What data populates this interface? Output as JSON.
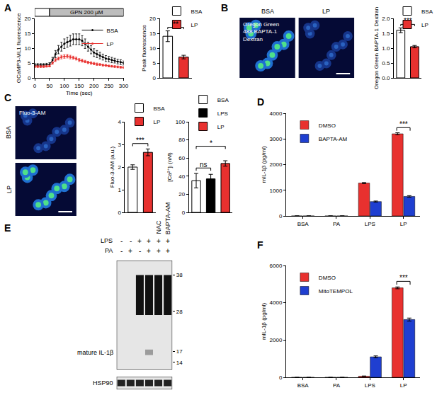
{
  "chart_data": [
    {
      "panel": "A",
      "type": "line",
      "stimulus": {
        "label": "GPN 200 μM",
        "start": 50,
        "end": 300
      },
      "x": [
        0,
        10,
        20,
        30,
        40,
        50,
        60,
        70,
        80,
        90,
        100,
        110,
        120,
        130,
        140,
        150,
        160,
        170,
        180,
        190,
        200,
        210,
        220,
        230,
        240,
        250,
        260,
        270,
        280,
        290,
        300
      ],
      "series": [
        {
          "name": "BSA",
          "color": "#000000",
          "marker": "circle",
          "values": [
            4.3,
            4.3,
            4.3,
            4.3,
            4.4,
            4.5,
            6.0,
            8.0,
            9.5,
            10.5,
            11.5,
            12.0,
            12.5,
            13.0,
            13.0,
            13.0,
            12.5,
            11.5,
            10.5,
            9.5,
            8.5,
            8.0,
            7.5,
            7.0,
            6.5,
            6.3,
            6.0,
            5.8,
            5.5,
            5.3,
            5.0
          ],
          "errors": [
            0.5,
            0.5,
            0.5,
            0.5,
            0.5,
            0.6,
            0.9,
            1.2,
            1.4,
            1.5,
            1.6,
            1.7,
            1.8,
            1.8,
            1.8,
            1.8,
            1.7,
            1.6,
            1.5,
            1.4,
            1.3,
            1.2,
            1.1,
            1.0,
            1.0,
            0.9,
            0.9,
            0.8,
            0.8,
            0.8,
            0.7
          ]
        },
        {
          "name": "LP",
          "color": "#e8312f",
          "marker": "circle",
          "values": [
            3.8,
            3.8,
            3.8,
            3.8,
            3.9,
            4.0,
            5.0,
            6.0,
            6.5,
            7.0,
            7.2,
            7.3,
            7.0,
            6.8,
            6.5,
            6.0,
            5.8,
            5.5,
            5.2,
            5.0,
            4.8,
            4.6,
            4.5,
            4.3,
            4.2,
            4.0,
            3.9,
            3.8,
            3.7,
            3.6,
            3.5
          ],
          "errors": [
            0.3,
            0.3,
            0.3,
            0.3,
            0.3,
            0.3,
            0.4,
            0.5,
            0.5,
            0.6,
            0.6,
            0.6,
            0.6,
            0.5,
            0.5,
            0.5,
            0.5,
            0.4,
            0.4,
            0.4,
            0.4,
            0.4,
            0.3,
            0.3,
            0.3,
            0.3,
            0.3,
            0.3,
            0.3,
            0.3,
            0.3
          ]
        }
      ],
      "xlabel": "Time (sec)",
      "ylabel": "GCaMP3-ML1 fluorescence",
      "xlim": [
        0,
        300
      ],
      "xticks": [
        0,
        50,
        100,
        150,
        200,
        250,
        300
      ],
      "ylim": [
        0,
        20
      ],
      "yticks": [
        0,
        5,
        10,
        15,
        20
      ],
      "legend": "top right"
    },
    {
      "type": "bar",
      "categories": [
        "BSA",
        "LP"
      ],
      "values": [
        14,
        7
      ],
      "errors": [
        1.8,
        0.6
      ],
      "colors": [
        "#ffffff",
        "#e8312f"
      ],
      "ylabel": "Peak fluorescence",
      "ylim": [
        0,
        20
      ],
      "yticks": [
        0,
        5,
        10,
        15,
        20
      ],
      "tick_labels": "y",
      "legend": "top",
      "significance": [
        {
          "from": "BSA",
          "to": "LP",
          "label": "**"
        }
      ]
    },
    {
      "panel": "B",
      "type": "image",
      "labels": [
        "BSA",
        "LP"
      ],
      "stain": [
        "Oregon Green",
        "488 BAPTA-1",
        "Dextran"
      ]
    },
    {
      "type": "bar",
      "categories": [
        "BSA",
        "LP"
      ],
      "values": [
        1.6,
        1.05
      ],
      "errors": [
        0.08,
        0.04
      ],
      "colors": [
        "#ffffff",
        "#e8312f"
      ],
      "ylabel": "Oregon Green BAPTA-1 Dextran",
      "ylim": [
        0,
        2
      ],
      "yticks": [
        {
          "value": 0,
          "label": "0.0"
        },
        {
          "value": 0.5,
          "label": "0.5"
        },
        {
          "value": 1,
          "label": "1.0"
        },
        {
          "value": 1.5,
          "label": "1.5"
        },
        {
          "value": 2,
          "label": "2.0"
        }
      ],
      "tick_labels": "y",
      "legend": "top",
      "significance": [
        {
          "from": "BSA",
          "to": "LP",
          "label": "***"
        }
      ]
    },
    {
      "panel": "C",
      "type": "image",
      "labels": [
        "BSA",
        "LP"
      ],
      "stain": [
        "Fluo-3-AM"
      ]
    },
    {
      "type": "bar",
      "categories": [
        "BSA",
        "LP"
      ],
      "values": [
        2.0,
        2.65
      ],
      "errors": [
        0.1,
        0.15
      ],
      "colors": [
        "#ffffff",
        "#e8312f"
      ],
      "ylabel": "Fluo-3-AM (a.u.)",
      "ylim": [
        0,
        4
      ],
      "yticks": [
        0,
        1,
        2,
        3,
        4
      ],
      "tick_labels": "y",
      "legend": "top",
      "significance": [
        {
          "from": "BSA",
          "to": "LP",
          "label": "***"
        }
      ]
    },
    {
      "type": "bar",
      "categories": [
        "BSA",
        "LPS",
        "LP"
      ],
      "values": [
        35,
        37,
        54
      ],
      "errors": [
        8,
        5,
        3
      ],
      "colors": [
        "#ffffff",
        "#000000",
        "#e8312f"
      ],
      "ylabel": "[Ca²⁺]ᵢ (nM)",
      "ylim": [
        0,
        100
      ],
      "yticks": [
        0,
        20,
        40,
        60,
        80,
        100
      ],
      "tick_labels": "y",
      "legend": "top",
      "significance": [
        {
          "from": "BSA",
          "to": "LPS",
          "label": "ns"
        },
        {
          "from": "BSA",
          "to": "LP",
          "label": "*"
        }
      ]
    },
    {
      "panel": "D",
      "type": "bar",
      "categories": [
        "BSA",
        "PA",
        "LPS",
        "LP"
      ],
      "series": [
        {
          "name": "DMSO",
          "color": "#e8312f",
          "values": [
            0,
            0,
            1280,
            3200
          ],
          "errors": [
            0,
            0,
            20,
            40
          ]
        },
        {
          "name": "BAPTA-AM",
          "color": "#1f3fd0",
          "values": [
            0,
            0,
            560,
            760
          ],
          "errors": [
            0,
            0,
            20,
            30
          ]
        }
      ],
      "ylabel": "mIL-1β (pg/ml)",
      "ylim": [
        0,
        4000
      ],
      "yticks": [
        0,
        1000,
        2000,
        3000,
        4000
      ],
      "legend": "top left",
      "significance": [
        {
          "category": "LP",
          "label": "***"
        }
      ]
    },
    {
      "panel": "E",
      "type": "blot",
      "rows": [
        {
          "label": "LPS",
          "signs": [
            "-",
            "-",
            "+",
            "+",
            "+",
            "+"
          ]
        },
        {
          "label": "PA",
          "signs": [
            "-",
            "+",
            "-",
            "+",
            "+",
            "+"
          ]
        }
      ],
      "treatments": [
        null,
        null,
        null,
        null,
        "NAC",
        "BAPTA-AM"
      ],
      "ylim": [
        12,
        42
      ],
      "yticks": [
        14,
        17,
        28,
        38
      ],
      "bands": [
        {
          "from": 27,
          "to": 38,
          "intensity": [
            0,
            0,
            1,
            1,
            1,
            1
          ]
        },
        {
          "label": "mature IL-1β",
          "from": 16,
          "to": 17.5,
          "intensity": [
            0,
            0,
            0,
            0.35,
            0,
            0
          ]
        }
      ],
      "loading": {
        "label": "HSP90",
        "intensity": [
          1,
          1,
          1,
          1,
          1,
          1
        ]
      }
    },
    {
      "panel": "F",
      "type": "bar",
      "categories": [
        "BSA",
        "PA",
        "LPS",
        "LP"
      ],
      "series": [
        {
          "name": "DMSO",
          "color": "#e8312f",
          "values": [
            0,
            0,
            60,
            4800
          ],
          "errors": [
            0,
            0,
            10,
            50
          ]
        },
        {
          "name": "MitoTEMPOL",
          "color": "#1f3fd0",
          "values": [
            0,
            0,
            1100,
            3100
          ],
          "errors": [
            0,
            0,
            50,
            80
          ]
        }
      ],
      "ylabel": "mIL-1β (pg/ml)",
      "ylim": [
        0,
        6000
      ],
      "yticks": [
        0,
        2000,
        4000,
        6000
      ],
      "legend": "top left",
      "significance": [
        {
          "category": "LP",
          "label": "***"
        }
      ]
    }
  ]
}
